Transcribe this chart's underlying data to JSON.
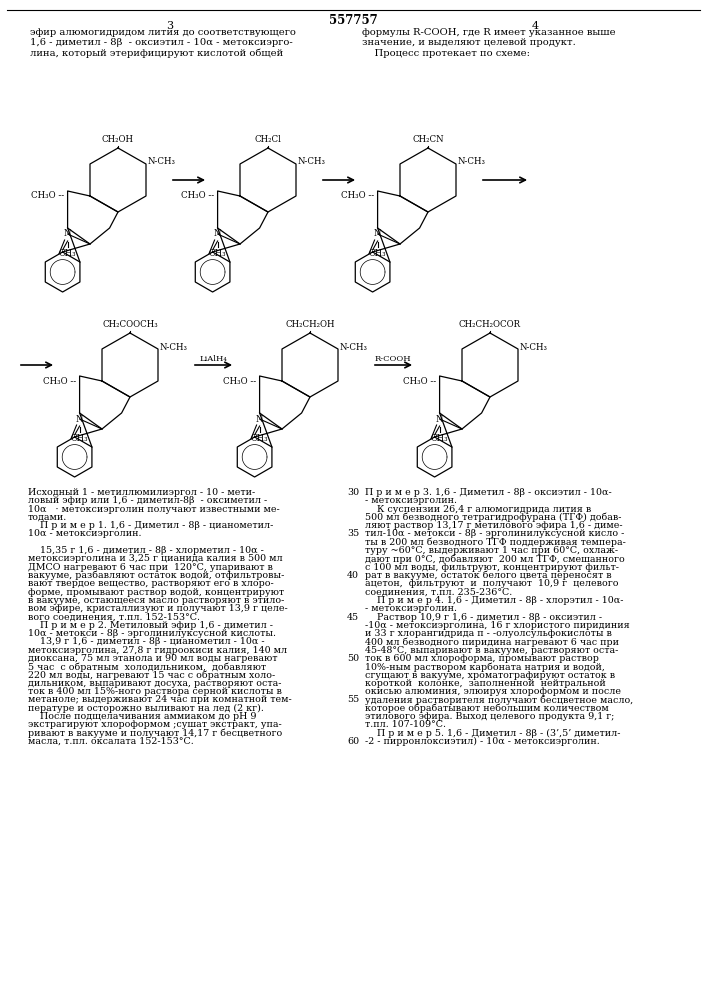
{
  "bg_color": "#ffffff",
  "patent_number": "557757",
  "page_left": "3",
  "page_right": "4",
  "left_header": "эфир алюмогидридом лития до соответствующего\n1,6 - диметил - 8β  - оксиэтил - 10α - метоксиэрго-\nлина, который этерифицируют кислотой общей",
  "right_header": "формулы R-COOH, где R имеет указанное выше\nзначение, и выделяют целевой продукт.\n    Процесс протекает по схеме:",
  "mol1_top": "CH₂OH",
  "mol2_top": "CH₂Cl",
  "mol3_top": "CH₂CN",
  "mol4_top": "CH₂COOCH₃",
  "mol5_top": "CH₂CH₂OH",
  "mol6_top": "CH₂CH₂OCOR",
  "reagent_row2_1": "LiAlH₄",
  "reagent_row2_2": "R-COOH",
  "left_body_lines": [
    "Исходный 1 - метиллюмилиэргол - 10 - мети-",
    "ловый эфир или 1,6 - диметил-8β  - оксиметил -",
    "10α   · метоксиэрголин получают известными ме-",
    "тодами.",
    "    П р и м е р 1. 1,6 - Диметил - 8β - цианометил-",
    "10α - метоксиэрголин.",
    "",
    "    15,35 г 1,6 - диметил - 8β - хлорметил - 10α -",
    "метоксиэрголина и 3,25 г цианида калия в 500 мл",
    "ДМСО нагревают 6 час при  120°С, упаривают в",
    "вакууме, разбавляют остаток водой, отфильтровы-",
    "вают твердое вещество, растворяют его в хлоро-",
    "форме, промывают раствор водой, концентрируют",
    "в вакууме, остающееся масло растворяют в этило-",
    "вом эфире, кристаллизуют и получают 13,9 г целе-",
    "вого соединения, т.пл. 152-153°С.",
    "    П р и м е р 2. Метиловый эфир 1,6 - диметил -",
    "10α - метокси - 8β - эрголинилуксусной кислоты.",
    "    13,9 г 1,6 - диметил - 8β - цианометил - 10α -",
    "метоксиэрголина, 27,8 г гидроокиси калия, 140 мл",
    "диоксана, 75 мл этанола и 90 мл воды нагревают",
    "5 час  с обратным  холодильником,  добавляют",
    "220 мл воды, нагревают 15 час с обратным холо-",
    "дильником, выпаривают досуха, растворяют оста-",
    "ток в 400 мл 15%-ного раствора серной кислоты в",
    "метаноле; выдерживают 24 час при комнатной тем-",
    "пературе и осторожно выливают на лед (2 кг).",
    "    После подщелачивания аммиаком до pH 9",
    "экстрагируют хлороформом ;сушат экстракт, упа-",
    "ривают в вакууме и получают 14,17 г бесцветного",
    "масла, т.пл. оксалата 152-153°С."
  ],
  "right_body_lines": [
    "П р и м е р 3. 1,6 - Диметил - 8β - оксиэтил - 10α-",
    "- метоксиэрголин.",
    "    К суспензии 26,4 г алюмогидрида лития в",
    "500 мл безводного тетрагидрофурана (ТГФ) добав-",
    "ляют раствор 13,17 г метилового эфира 1,6 - диме-",
    "тил-10α - метокси - 8β - эрголинилуксусной кисло -",
    "ты в 200 мл безводного ТГФ поддерживая темпера-",
    "туру ~60°С, выдерживают 1 час при 60°С, охлаж-",
    "дают при 0°С, добавляют  200 мл ТГФ, смешанного",
    "с 100 мл воды, фильтруют, концентрируют фильт-",
    "рат в вакууме, остаток белого цвета переносят в",
    "ацетон,  фильтруют  и  получают  10,9 г  целевого",
    "соединения, т.пл. 235-236°С.",
    "    П р и м е р 4. 1,6 - Диметил - 8β - хлорэтил - 10α-",
    "- метоксиэрголин.",
    "    Раствор 10,9 г 1,6 - диметил - 8β - оксиэтил -",
    "-10α - метоксиэрголина, 16 г хлористого пиридиния",
    "и 33 г хлорангидрида п - -олуолсульфокислоты в",
    "400 мл безводного пиридина нагревают 6 час при",
    "45-48°С, выпаривают в вакууме, растворяют оста-",
    "ток в 600 мл хлороформа, промывают раствор",
    "10%-ным раствором карбоната натрия и водой,",
    "сгущают в вакууме, хроматографируют остаток в",
    "короткой  колонке,  заполненной  нейтральной",
    "окисью алюминия, элюируя хлороформом и после",
    "удаления растворителя получают бесцветное масло,",
    "которое обрабатывают небольшим количеством",
    "этилового эфира. Выход целевого продукта 9,1 г;",
    "т.пл. 107-109°С.",
    "    П р и м е р 5. 1,6 - Диметил - 8β - (3’,5’ диметил-",
    "-2 - пирронлоксиэтил) - 10α - метоксиэрголин."
  ],
  "line_numbers": [
    "30",
    "35",
    "40",
    "45",
    "50",
    "55",
    "60"
  ],
  "figsize": [
    7.07,
    10.0
  ],
  "dpi": 100
}
